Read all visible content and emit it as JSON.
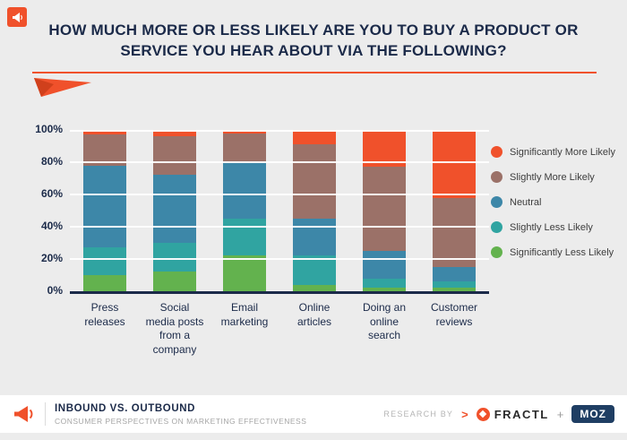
{
  "title": {
    "text": "HOW MUCH MORE OR LESS LIKELY ARE YOU TO BUY A PRODUCT OR SERVICE YOU HEAR ABOUT VIA THE FOLLOWING?"
  },
  "colors": {
    "accent_orange": "#f0512b",
    "navy": "#1b2a49",
    "background": "#ececec"
  },
  "chart_data": {
    "type": "bar",
    "subtype": "stacked-100-percent",
    "categories": [
      "Press releases",
      "Social media posts from a company",
      "Email marketing",
      "Online articles",
      "Doing an online search",
      "Customer reviews"
    ],
    "series": [
      {
        "name": "Significantly Less Likely",
        "color": "#63b24e",
        "values": [
          10,
          12,
          22,
          4,
          2,
          2
        ]
      },
      {
        "name": "Slightly Less Likely",
        "color": "#30a4a1",
        "values": [
          17,
          18,
          23,
          18,
          6,
          4
        ]
      },
      {
        "name": "Neutral",
        "color": "#3d87a8",
        "values": [
          51,
          42,
          35,
          23,
          17,
          9
        ]
      },
      {
        "name": "Slightly More Likely",
        "color": "#9b7168",
        "values": [
          19,
          24,
          18,
          46,
          52,
          43
        ]
      },
      {
        "name": "Significantly More Likely",
        "color": "#f0512b",
        "values": [
          3,
          4,
          2,
          9,
          23,
          42
        ]
      }
    ],
    "yticks": [
      "100%",
      "80%",
      "60%",
      "40%",
      "20%",
      "0%"
    ],
    "ylim": [
      0,
      100
    ],
    "grid": true,
    "legend_position": "right"
  },
  "legend": {
    "items": [
      {
        "label": "Significantly More Likely",
        "color": "#f0512b"
      },
      {
        "label": "Slightly More Likely",
        "color": "#9b7168"
      },
      {
        "label": "Neutral",
        "color": "#3d87a8"
      },
      {
        "label": "Slightly Less Likely",
        "color": "#30a4a1"
      },
      {
        "label": "Significantly Less Likely",
        "color": "#63b24e"
      }
    ]
  },
  "footer": {
    "brand_title": "INBOUND VS. OUTBOUND",
    "brand_subtitle": "CONSUMER PERSPECTIVES ON MARKETING EFFECTIVENESS",
    "research_by": "RESEARCH BY",
    "chevron": ">",
    "fractl": "FRACTL",
    "plus": "+",
    "moz": "MOZ"
  }
}
